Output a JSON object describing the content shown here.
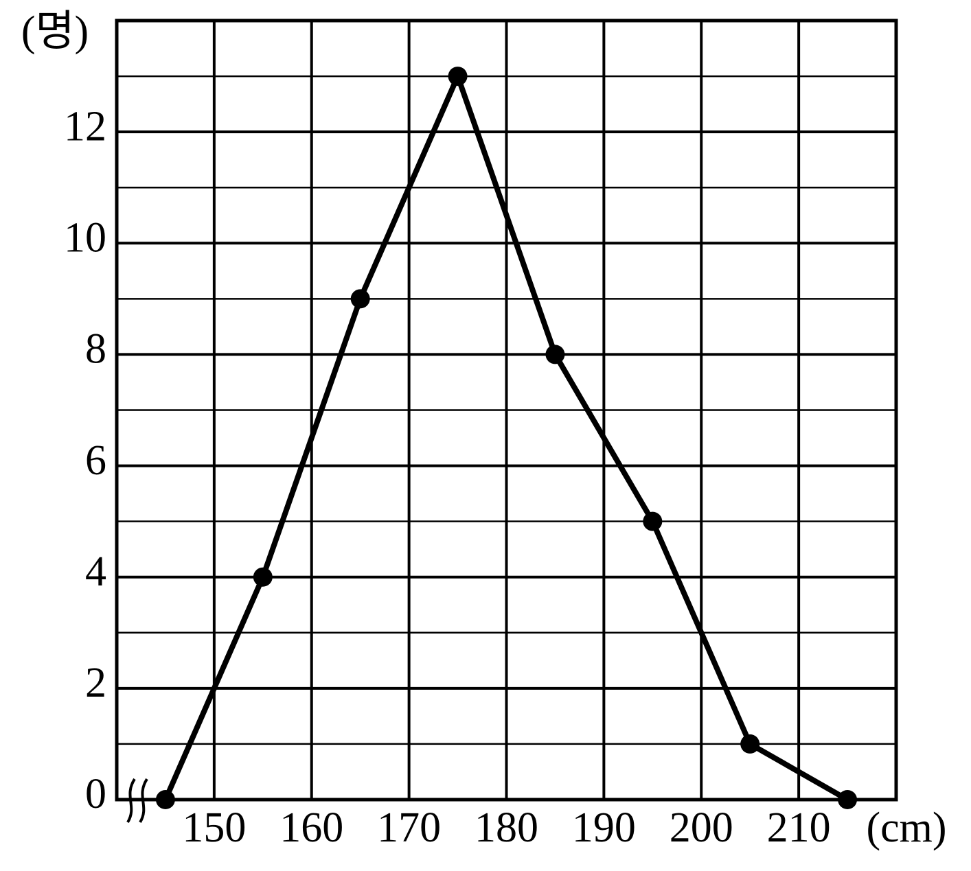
{
  "chart_data": {
    "type": "line",
    "y_label": "(명)",
    "x_label": "(cm)",
    "x": [
      145,
      155,
      165,
      175,
      185,
      195,
      205,
      215
    ],
    "series": [
      {
        "color": "#000000",
        "values": [
          0,
          4,
          9,
          13,
          8,
          5,
          1,
          0
        ]
      }
    ],
    "xlim": [
      140,
      220
    ],
    "xticks": [
      150,
      160,
      170,
      180,
      190,
      200,
      210
    ],
    "ylim": [
      0,
      14
    ],
    "yticks": [
      0,
      2,
      4,
      6,
      8,
      10,
      12
    ],
    "ygrid": [
      1,
      3,
      5,
      7,
      9,
      11,
      13
    ],
    "grid": true,
    "axis_break": true
  }
}
